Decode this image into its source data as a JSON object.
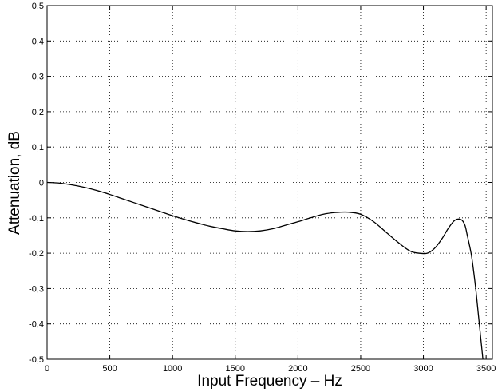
{
  "chart_data": {
    "type": "line",
    "title": "",
    "xlabel": "Input Frequency – Hz",
    "ylabel": "Attenuation, dB",
    "xlim": [
      0,
      3550
    ],
    "ylim": [
      -0.5,
      0.5
    ],
    "grid": true,
    "legend": "none",
    "x_ticks": [
      0,
      500,
      1000,
      1500,
      2000,
      2500,
      3000,
      3500
    ],
    "y_ticks": [
      -0.5,
      -0.4,
      -0.3,
      -0.2,
      -0.1,
      0,
      0.1,
      0.2,
      0.3,
      0.4,
      0.5
    ],
    "x_tick_labels": [
      "0",
      "500",
      "1000",
      "1500",
      "2000",
      "2500",
      "3000",
      "3500"
    ],
    "y_tick_labels": [
      "-0,5",
      "-0,4",
      "-0,3",
      "-0,2",
      "-0,1",
      "0",
      "0,1",
      "0,2",
      "0,3",
      "0,4",
      "0,5"
    ],
    "series": [
      {
        "color": "#000000",
        "x": [
          0,
          100,
          200,
          300,
          400,
          500,
          600,
          700,
          800,
          900,
          1000,
          1100,
          1200,
          1300,
          1400,
          1500,
          1600,
          1700,
          1800,
          1900,
          2000,
          2100,
          2200,
          2300,
          2400,
          2500,
          2600,
          2700,
          2800,
          2900,
          3000,
          3050,
          3100,
          3150,
          3200,
          3250,
          3300,
          3330,
          3350,
          3380,
          3400,
          3420,
          3440,
          3460,
          3480
        ],
        "y": [
          0,
          -0.002,
          -0.007,
          -0.014,
          -0.023,
          -0.034,
          -0.046,
          -0.058,
          -0.07,
          -0.082,
          -0.094,
          -0.105,
          -0.115,
          -0.124,
          -0.131,
          -0.137,
          -0.139,
          -0.137,
          -0.131,
          -0.121,
          -0.111,
          -0.1,
          -0.09,
          -0.085,
          -0.084,
          -0.09,
          -0.11,
          -0.14,
          -0.17,
          -0.195,
          -0.201,
          -0.197,
          -0.182,
          -0.158,
          -0.129,
          -0.107,
          -0.105,
          -0.12,
          -0.15,
          -0.2,
          -0.25,
          -0.31,
          -0.38,
          -0.45,
          -0.52
        ]
      }
    ]
  }
}
